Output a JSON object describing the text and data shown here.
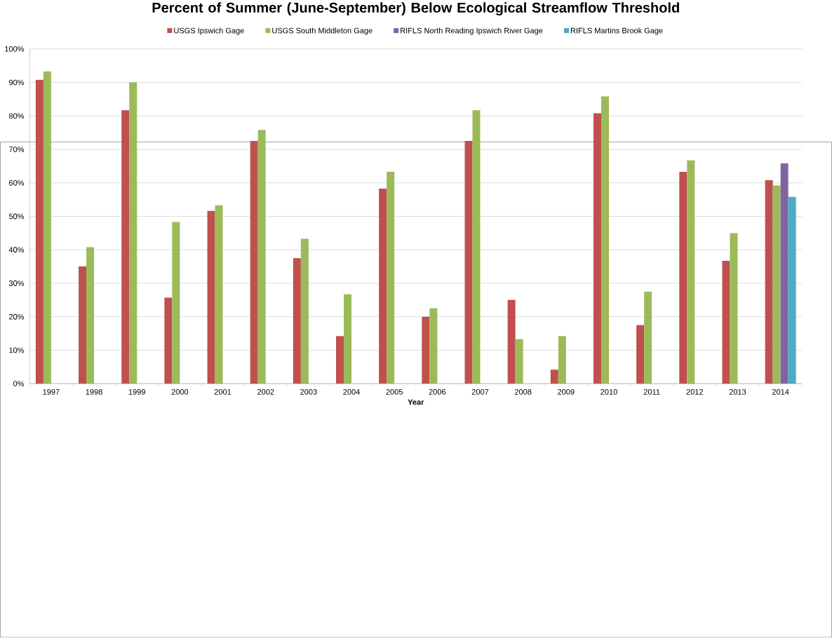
{
  "chart_data": {
    "type": "bar",
    "title": "Percent of Summer (June-September) Below Ecological Streamflow Threshold",
    "xlabel": "Year",
    "categories": [
      "1997",
      "1998",
      "1999",
      "2000",
      "2001",
      "2002",
      "2003",
      "2004",
      "2005",
      "2006",
      "2007",
      "2008",
      "2009",
      "2010",
      "2011",
      "2012",
      "2013",
      "2014"
    ],
    "series": [
      {
        "name": "USGS Ipswich Gage",
        "color": "#c0504d",
        "values": [
          90.8,
          35,
          81.7,
          25.7,
          51.6,
          72.5,
          37.5,
          14.2,
          58.3,
          20,
          72.5,
          25,
          4.2,
          80.8,
          17.5,
          63.3,
          36.7,
          60.8
        ]
      },
      {
        "name": "USGS South Middleton Gage",
        "color": "#9bbb59",
        "values": [
          93.3,
          40.8,
          90,
          48.3,
          53.3,
          75.8,
          43.3,
          26.7,
          63.3,
          22.5,
          81.7,
          13.3,
          14.2,
          85.8,
          27.5,
          66.7,
          45,
          59.2
        ]
      },
      {
        "name": "RIFLS North Reading Ipswich River Gage",
        "color": "#8064a2",
        "values": [
          null,
          null,
          null,
          null,
          null,
          null,
          null,
          null,
          null,
          null,
          null,
          null,
          null,
          null,
          null,
          null,
          null,
          65.8
        ]
      },
      {
        "name": "RIFLS Martins Brook Gage",
        "color": "#4bacc6",
        "values": [
          null,
          null,
          null,
          null,
          null,
          null,
          null,
          null,
          null,
          null,
          null,
          null,
          null,
          null,
          null,
          null,
          null,
          55.8
        ]
      }
    ],
    "ylim": [
      0,
      100
    ],
    "yticks": [
      {
        "value": 0,
        "label": "0%"
      },
      {
        "value": 10,
        "label": "10%"
      },
      {
        "value": 20,
        "label": "20%"
      },
      {
        "value": 30,
        "label": "30%"
      },
      {
        "value": 40,
        "label": "40%"
      },
      {
        "value": 50,
        "label": "50%"
      },
      {
        "value": 60,
        "label": "60%"
      },
      {
        "value": 70,
        "label": "70%"
      },
      {
        "value": 80,
        "label": "80%"
      },
      {
        "value": 90,
        "label": "90%"
      },
      {
        "value": 100,
        "label": "100%"
      }
    ],
    "grid": "y",
    "legend": "top"
  }
}
